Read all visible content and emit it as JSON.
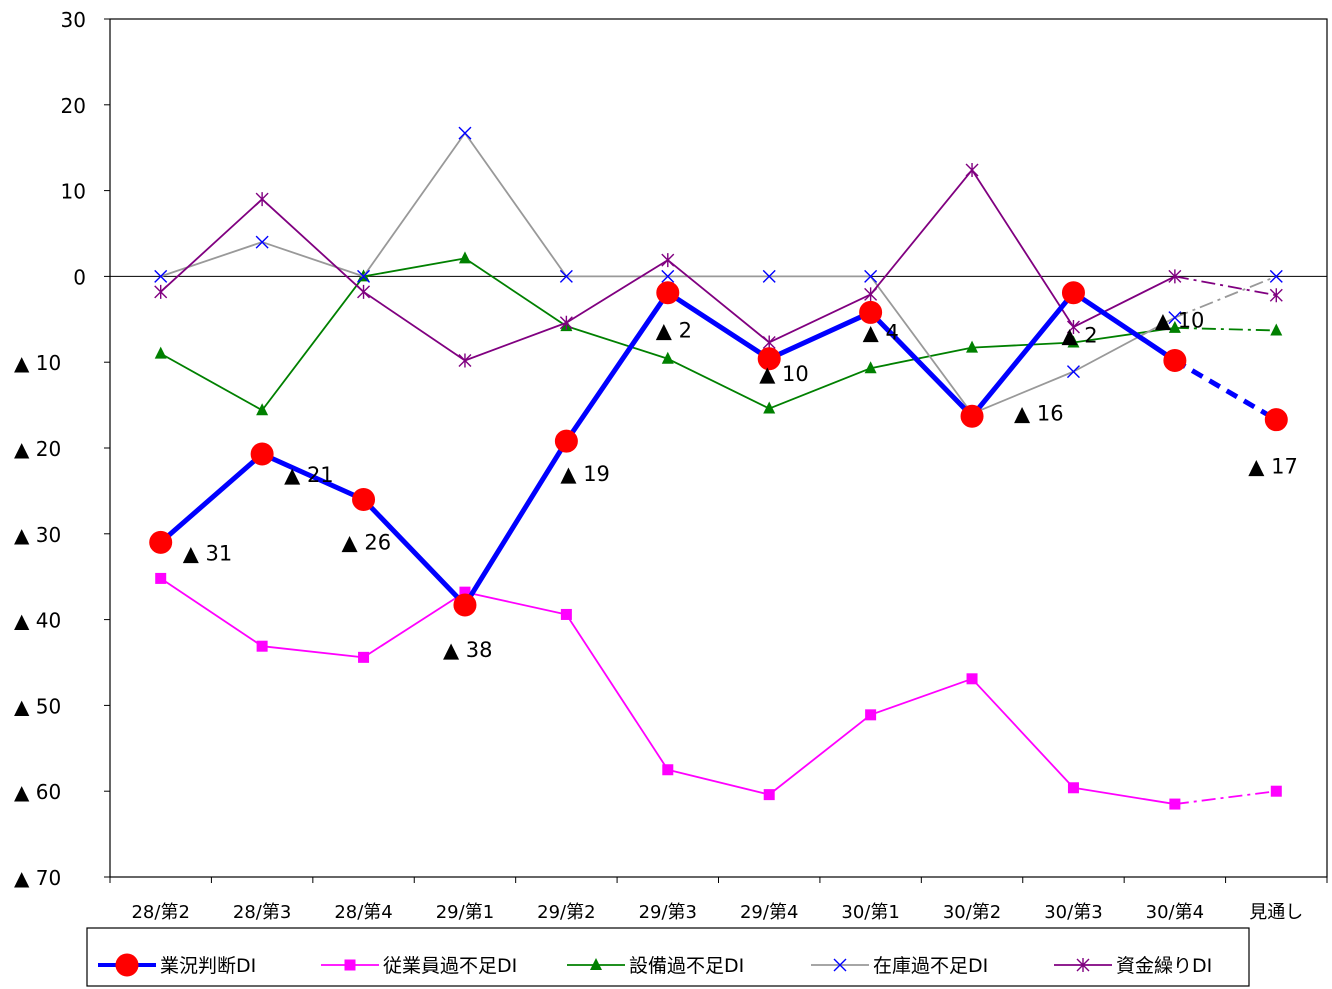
{
  "chart_data": {
    "type": "line",
    "title": "",
    "xlabel": "",
    "ylabel": "",
    "categories": [
      "28/第2",
      "28/第3",
      "28/第4",
      "29/第1",
      "29/第2",
      "29/第3",
      "29/第4",
      "30/第1",
      "30/第2",
      "30/第3",
      "30/第4",
      "見通し"
    ],
    "ylim": [
      -70,
      30
    ],
    "yticks": [
      30,
      20,
      10,
      0,
      -10,
      -20,
      -30,
      -40,
      -50,
      -60,
      -70
    ],
    "ytick_labels": [
      "30",
      "20",
      "10",
      "0",
      "▲ 10",
      "▲ 20",
      "▲ 30",
      "▲ 40",
      "▲ 50",
      "▲ 60",
      "▲ 70"
    ],
    "grid": false,
    "legend_position": "bottom",
    "series": [
      {
        "name": "業況判断DI",
        "color": "#0000ff",
        "marker": "circle",
        "marker_color": "#ff0000",
        "values": [
          -31,
          -20.7,
          -26,
          -38.3,
          -19.2,
          -1.9,
          -9.6,
          -4.2,
          -16.3,
          -1.9,
          -9.8,
          -16.7
        ]
      },
      {
        "name": "従業員過不足DI",
        "color": "#ff00ff",
        "marker": "square",
        "values": [
          -35.2,
          -43.1,
          -44.4,
          -36.8,
          -39.4,
          -57.5,
          -60.4,
          -51.1,
          -46.9,
          -59.6,
          -61.5,
          -60.0
        ]
      },
      {
        "name": "設備過不足DI",
        "color": "#008000",
        "marker": "triangle",
        "values": [
          -9.0,
          -15.6,
          0,
          2.1,
          -5.8,
          -9.6,
          -15.4,
          -10.7,
          -8.3,
          -7.7,
          -6.0,
          -6.3
        ]
      },
      {
        "name": "在庫過不足DI",
        "color": "#999999",
        "marker": "x",
        "marker_color": "#0000ff",
        "values": [
          0,
          4.0,
          0,
          16.7,
          0,
          0,
          0,
          0,
          -16.0,
          -11.1,
          -4.8,
          0
        ]
      },
      {
        "name": "資金繰りDI",
        "color": "#800080",
        "marker": "star",
        "values": [
          -1.8,
          9.0,
          -1.8,
          -9.8,
          -5.4,
          1.9,
          -7.7,
          -2.1,
          12.4,
          -5.9,
          0,
          -2.2
        ]
      }
    ],
    "data_labels": [
      "▲ 31",
      "▲ 21",
      "▲ 26",
      "▲ 38",
      "▲ 19",
      "▲ 2",
      "▲ 10",
      "▲ 4",
      "▲ 16",
      "▲ 2",
      "▲ 10",
      "▲ 17"
    ]
  }
}
